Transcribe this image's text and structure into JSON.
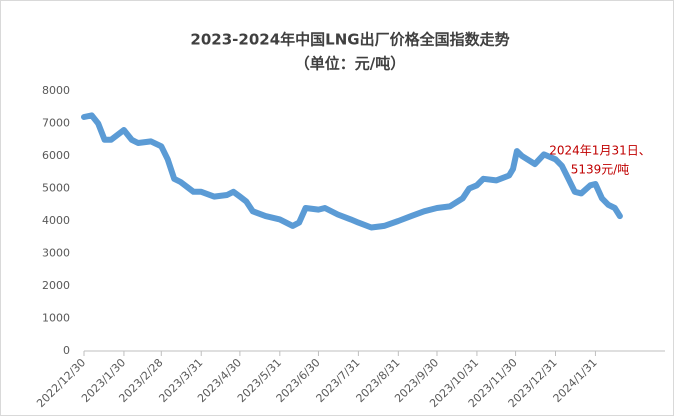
{
  "chart_data": {
    "type": "line",
    "title": "2023-2024年中国LNG出厂价格全国指数走势",
    "subtitle": "（单位：元/吨）",
    "annotation": [
      "2024年1月31日、",
      "5139元/吨"
    ],
    "annotation_color": "#c00000",
    "x": [
      "2022/12/30",
      "2023/1/5",
      "2023/1/10",
      "2023/1/15",
      "2023/1/20",
      "2023/1/30",
      "2023/2/5",
      "2023/2/10",
      "2023/2/20",
      "2023/2/28",
      "2023/3/5",
      "2023/3/10",
      "2023/3/15",
      "2023/3/25",
      "2023/3/31",
      "2023/4/10",
      "2023/4/20",
      "2023/4/25",
      "2023/4/30",
      "2023/5/5",
      "2023/5/10",
      "2023/5/20",
      "2023/5/31",
      "2023/6/10",
      "2023/6/15",
      "2023/6/20",
      "2023/6/30",
      "2023/7/5",
      "2023/7/15",
      "2023/7/25",
      "2023/7/31",
      "2023/8/10",
      "2023/8/20",
      "2023/8/31",
      "2023/9/10",
      "2023/9/20",
      "2023/9/30",
      "2023/10/10",
      "2023/10/20",
      "2023/10/25",
      "2023/10/31",
      "2023/11/5",
      "2023/11/15",
      "2023/11/25",
      "2023/11/28",
      "2023/12/1",
      "2023/12/5",
      "2023/12/15",
      "2023/12/22",
      "2023/12/31",
      "2024/1/5",
      "2024/1/10",
      "2024/1/15",
      "2024/1/20",
      "2024/1/27",
      "2024/1/31",
      "2024/2/5",
      "2024/2/10",
      "2024/2/15",
      "2024/2/19"
    ],
    "series": [
      {
        "color": "#5b9bd5",
        "values": [
          7200,
          7250,
          7000,
          6500,
          6500,
          6800,
          6500,
          6400,
          6450,
          6300,
          5900,
          5300,
          5200,
          4900,
          4900,
          4750,
          4800,
          4900,
          4750,
          4600,
          4300,
          4150,
          4050,
          3850,
          3950,
          4400,
          4350,
          4400,
          4200,
          4050,
          3950,
          3800,
          3850,
          4000,
          4150,
          4300,
          4400,
          4450,
          4700,
          5000,
          5100,
          5300,
          5250,
          5400,
          5600,
          6150,
          6000,
          5750,
          6050,
          5900,
          5700,
          5300,
          4900,
          4850,
          5100,
          5139,
          4700,
          4500,
          4400,
          4150
        ]
      }
    ],
    "xlim": [
      "2022/12/30",
      "2024/3/25"
    ],
    "xticks": [
      "2022/12/30",
      "2023/1/30",
      "2023/2/28",
      "2023/3/31",
      "2023/4/30",
      "2023/5/31",
      "2023/6/30",
      "2023/7/31",
      "2023/8/31",
      "2023/9/30",
      "2023/10/31",
      "2023/11/30",
      "2023/12/31",
      "2024/1/31"
    ],
    "ylim": [
      0,
      8000
    ],
    "yticks": [
      0,
      1000,
      2000,
      3000,
      4000,
      5000,
      6000,
      7000,
      8000
    ],
    "grid": false
  }
}
